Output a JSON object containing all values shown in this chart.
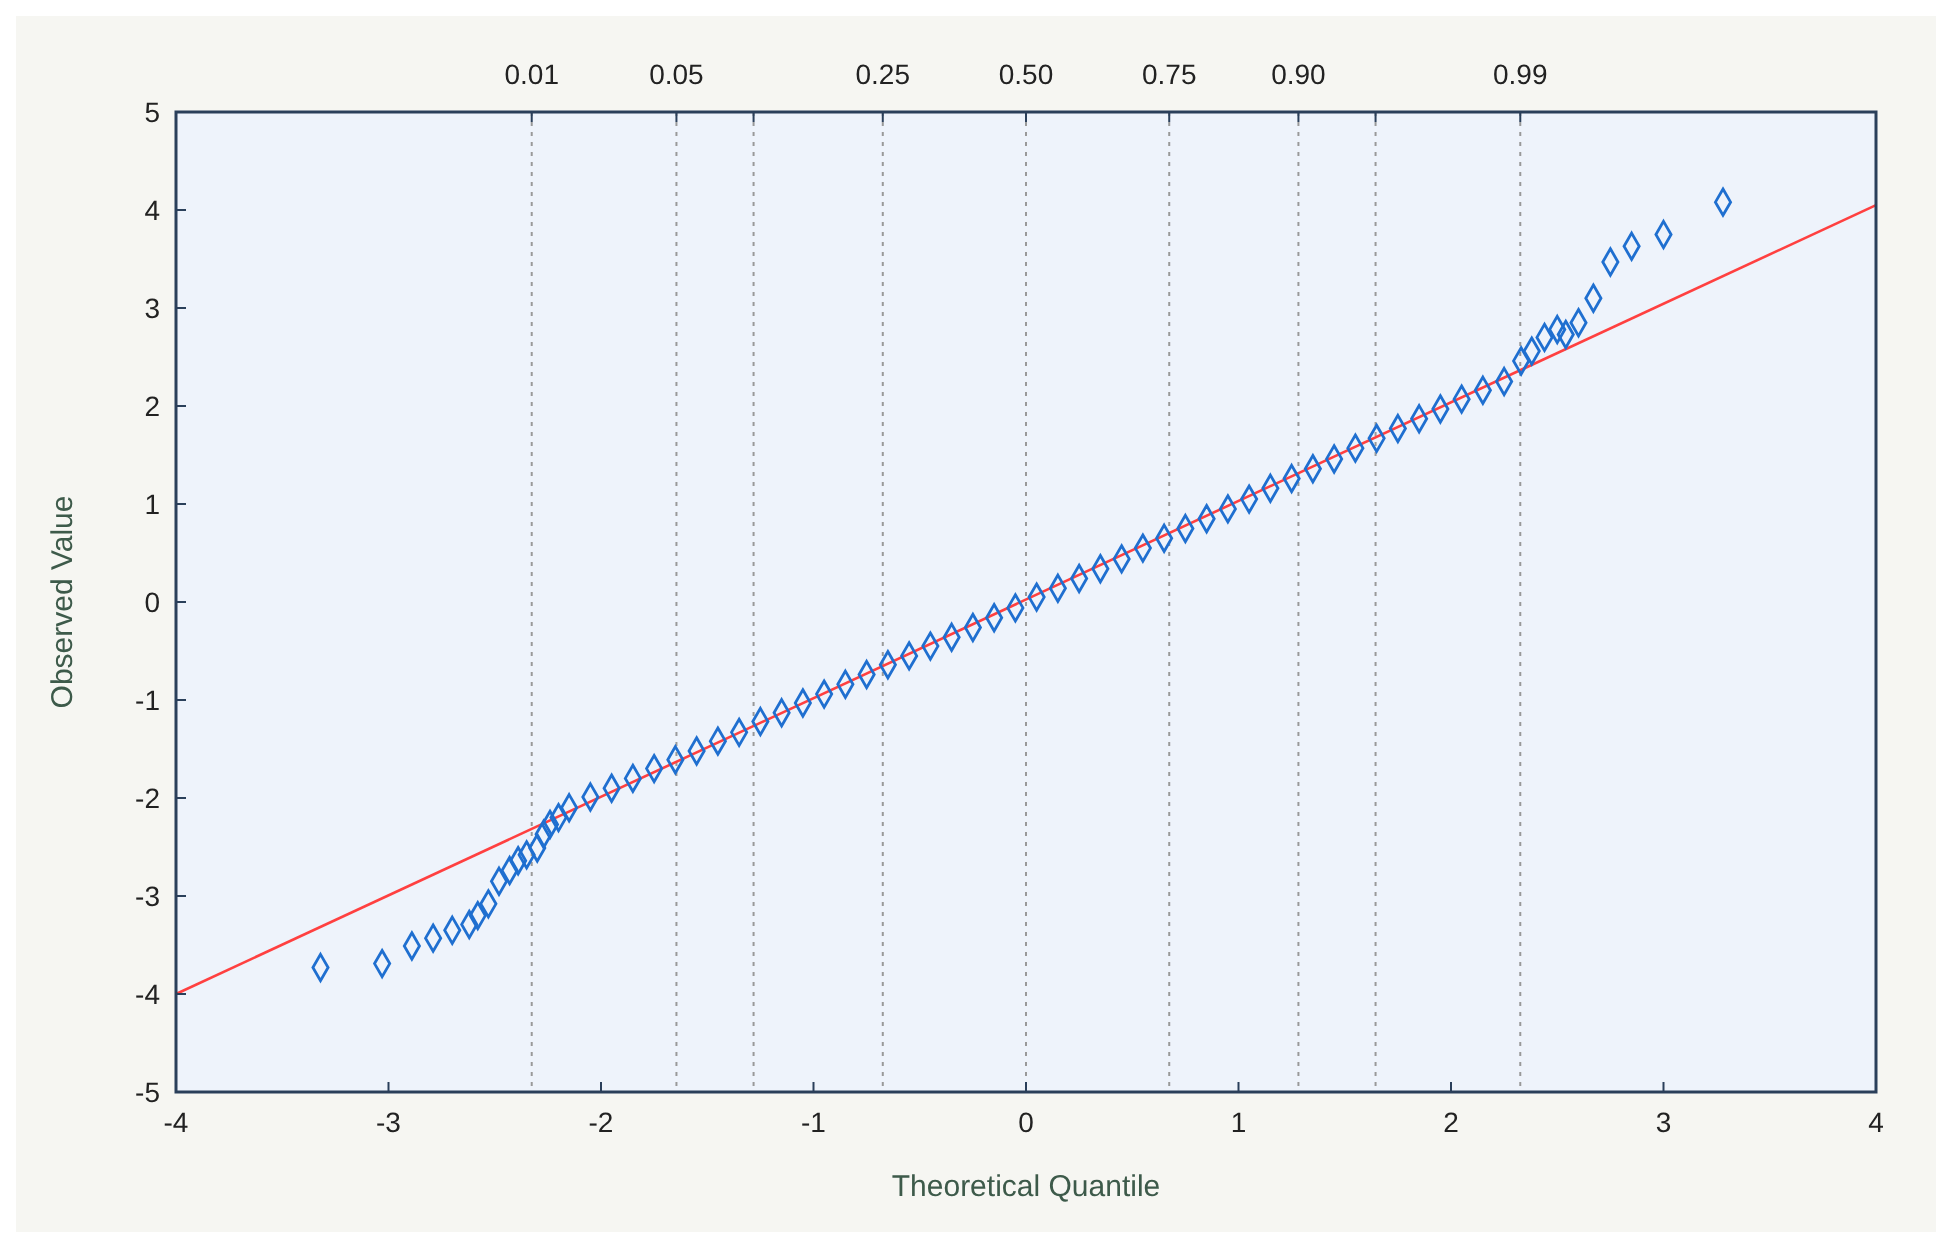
{
  "chart_data": {
    "type": "scatter",
    "xlabel": "Theoretical Quantile",
    "ylabel": "Observed Value",
    "xlim": [
      -4,
      4
    ],
    "ylim": [
      -5,
      5
    ],
    "xticks": [
      -4,
      -3,
      -2,
      -1,
      0,
      1,
      2,
      3,
      4
    ],
    "yticks": [
      -5,
      -4,
      -3,
      -2,
      -1,
      0,
      1,
      2,
      3,
      4,
      5
    ],
    "grid": false,
    "ref_lines": [
      {
        "axis": "x",
        "value": -2.326,
        "line_style": "dotted",
        "color": "#999999"
      },
      {
        "axis": "x",
        "value": -1.645,
        "line_style": "dotted",
        "color": "#999999"
      },
      {
        "axis": "x",
        "value": -1.282,
        "line_style": "dotted",
        "color": "#999999"
      },
      {
        "axis": "x",
        "value": -0.674,
        "line_style": "dotted",
        "color": "#999999"
      },
      {
        "axis": "x",
        "value": 0,
        "line_style": "dotted",
        "color": "#999999"
      },
      {
        "axis": "x",
        "value": 0.674,
        "line_style": "dotted",
        "color": "#999999"
      },
      {
        "axis": "x",
        "value": 1.282,
        "line_style": "dotted",
        "color": "#999999"
      },
      {
        "axis": "x",
        "value": 1.645,
        "line_style": "dotted",
        "color": "#999999"
      },
      {
        "axis": "x",
        "value": 2.326,
        "line_style": "dotted",
        "color": "#999999"
      }
    ],
    "annotations": [
      {
        "text": "0.01",
        "x": -2.326,
        "y": 5
      },
      {
        "text": "0.05",
        "x": -1.645,
        "y": 5
      },
      {
        "text": "0.25",
        "x": -0.674,
        "y": 5
      },
      {
        "text": "0.50",
        "x": 0,
        "y": 5
      },
      {
        "text": "0.75",
        "x": 0.674,
        "y": 5
      },
      {
        "text": "0.90",
        "x": 1.282,
        "y": 5
      },
      {
        "text": "0.99",
        "x": 2.326,
        "y": 5
      }
    ],
    "series": [
      {
        "type": "line",
        "marker": "none",
        "color": "#ff4040",
        "line_style": "solid",
        "x": [
          -4,
          4
        ],
        "values": [
          -4.0,
          4.05
        ]
      },
      {
        "marker": "diamond",
        "color": "#1f6fd0",
        "x": [
          -3.32,
          -3.03,
          -2.89,
          -2.79,
          -2.7,
          -2.62,
          -2.58,
          -2.53,
          -2.48,
          -2.43,
          -2.39,
          -2.35,
          -2.3,
          -2.27,
          -2.24,
          -2.2,
          -2.15,
          -2.05,
          -1.95,
          -1.85,
          -1.75,
          -1.65,
          -1.55,
          -1.45,
          -1.35,
          -1.25,
          -1.15,
          -1.05,
          -0.95,
          -0.85,
          -0.75,
          -0.65,
          -0.55,
          -0.45,
          -0.35,
          -0.25,
          -0.15,
          -0.05,
          0.05,
          0.15,
          0.25,
          0.35,
          0.45,
          0.55,
          0.65,
          0.75,
          0.85,
          0.95,
          1.05,
          1.15,
          1.25,
          1.35,
          1.45,
          1.55,
          1.65,
          1.75,
          1.85,
          1.95,
          2.05,
          2.15,
          2.25,
          2.33,
          2.38,
          2.44,
          2.5,
          2.54,
          2.6,
          2.67,
          2.75,
          2.85,
          3.0,
          3.28
        ],
        "values": [
          -3.73,
          -3.69,
          -3.51,
          -3.43,
          -3.35,
          -3.29,
          -3.2,
          -3.08,
          -2.85,
          -2.74,
          -2.64,
          -2.58,
          -2.51,
          -2.37,
          -2.27,
          -2.2,
          -2.1,
          -1.99,
          -1.9,
          -1.8,
          -1.7,
          -1.61,
          -1.52,
          -1.42,
          -1.33,
          -1.22,
          -1.13,
          -1.03,
          -0.94,
          -0.84,
          -0.74,
          -0.64,
          -0.55,
          -0.45,
          -0.36,
          -0.26,
          -0.16,
          -0.06,
          0.05,
          0.14,
          0.24,
          0.34,
          0.44,
          0.55,
          0.65,
          0.75,
          0.85,
          0.95,
          1.05,
          1.16,
          1.26,
          1.36,
          1.46,
          1.57,
          1.67,
          1.77,
          1.87,
          1.97,
          2.07,
          2.16,
          2.25,
          2.46,
          2.56,
          2.7,
          2.78,
          2.73,
          2.85,
          3.1,
          3.47,
          3.63,
          3.75,
          4.08
        ]
      }
    ]
  }
}
